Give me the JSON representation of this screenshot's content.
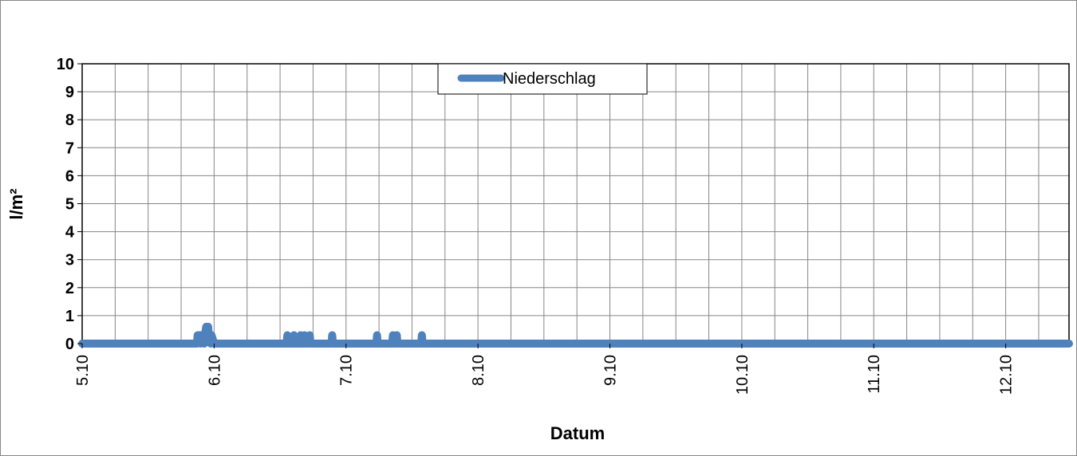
{
  "chart_data": {
    "type": "line",
    "title": "",
    "xlabel": "Datum",
    "ylabel": "l/m²",
    "ylim": [
      0,
      10
    ],
    "yticks": [
      "0",
      "1",
      "2",
      "3",
      "4",
      "5",
      "6",
      "7",
      "8",
      "9",
      "10"
    ],
    "xlim_days": [
      5.0,
      12.48
    ],
    "xticks": [
      {
        "day": 5,
        "label": "5.10"
      },
      {
        "day": 6,
        "label": "6.10"
      },
      {
        "day": 7,
        "label": "7.10"
      },
      {
        "day": 8,
        "label": "8.10"
      },
      {
        "day": 9,
        "label": "9.10"
      },
      {
        "day": 10,
        "label": "10.10"
      },
      {
        "day": 11,
        "label": "11.10"
      },
      {
        "day": 12,
        "label": "12.10"
      }
    ],
    "grid": true,
    "legend": {
      "position": "top-center",
      "entries": [
        "Niederschlag"
      ]
    },
    "series": [
      {
        "name": "Niederschlag",
        "color": "#4f81bd",
        "x": [
          5.0,
          5.87,
          5.875,
          5.89,
          5.895,
          5.9,
          5.92,
          5.925,
          5.93,
          5.94,
          5.945,
          5.95,
          5.955,
          5.96,
          5.97,
          5.975,
          5.98,
          6.0,
          6.55,
          6.555,
          6.56,
          6.6,
          6.605,
          6.61,
          6.65,
          6.655,
          6.66,
          6.68,
          6.685,
          6.69,
          6.72,
          6.725,
          6.73,
          6.89,
          6.895,
          6.9,
          7.23,
          7.235,
          7.24,
          7.35,
          7.355,
          7.36,
          7.38,
          7.385,
          7.39,
          7.57,
          7.575,
          7.58,
          12.48
        ],
        "y": [
          0,
          0,
          0.3,
          0.3,
          0,
          0.3,
          0.3,
          0,
          0.3,
          0.6,
          0.6,
          0.3,
          0.6,
          0.3,
          0.3,
          0,
          0.3,
          0,
          0,
          0.3,
          0,
          0,
          0.3,
          0,
          0,
          0.3,
          0,
          0,
          0.3,
          0,
          0,
          0.3,
          0,
          0,
          0.3,
          0,
          0,
          0.3,
          0,
          0,
          0.3,
          0,
          0,
          0.3,
          0,
          0,
          0.3,
          0,
          0
        ]
      }
    ]
  }
}
